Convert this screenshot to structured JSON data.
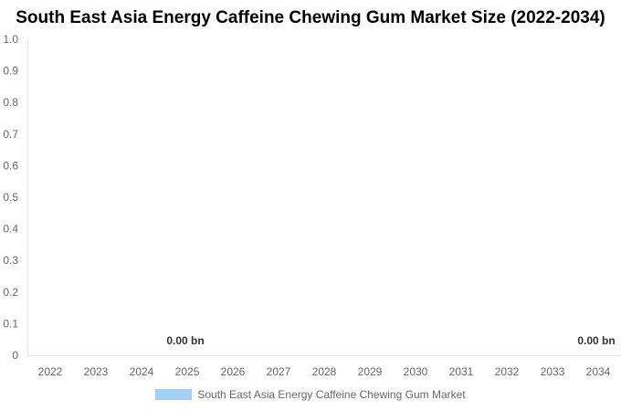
{
  "chart_data": {
    "type": "bar",
    "title": "South East Asia Energy Caffeine Chewing Gum Market Size (2022-2034)",
    "categories": [
      "2022",
      "2023",
      "2024",
      "2025",
      "2026",
      "2027",
      "2028",
      "2029",
      "2030",
      "2031",
      "2032",
      "2033",
      "2034"
    ],
    "series": [
      {
        "name": "South East Asia Energy Caffeine Chewing Gum Market",
        "values": [
          0,
          0,
          0,
          0,
          0,
          0,
          0,
          0,
          0,
          0,
          0,
          0,
          0
        ],
        "color": "#a3cff7"
      }
    ],
    "ylim": [
      0,
      1
    ],
    "y_ticks": [
      "0",
      "0.1",
      "0.2",
      "0.3",
      "0.4",
      "0.5",
      "0.6",
      "0.7",
      "0.8",
      "0.9",
      "1.0"
    ],
    "data_labels": [
      {
        "category": "2025",
        "text": "0.00 bn"
      },
      {
        "category": "2034",
        "text": "0.00 bn"
      }
    ],
    "legend_position": "bottom",
    "grid": false,
    "xlabel": "",
    "ylabel": ""
  }
}
